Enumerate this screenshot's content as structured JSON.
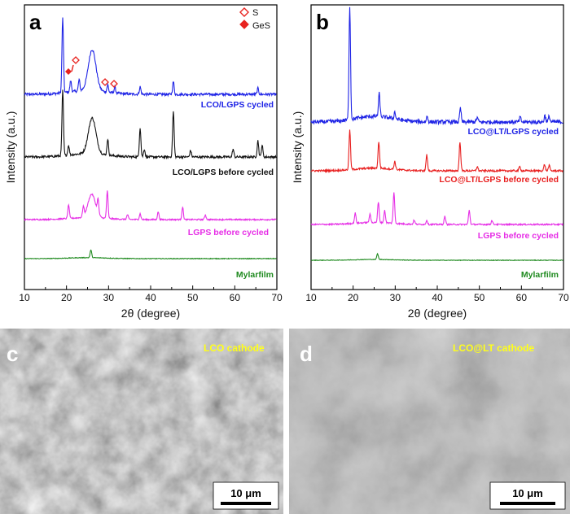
{
  "chart_data": [
    {
      "panel": "a",
      "type": "line",
      "xlabel": "2θ (degree)",
      "ylabel": "Intensity (a.u.)",
      "xlim": [
        10,
        70
      ],
      "xticks": [
        10,
        20,
        30,
        40,
        50,
        60,
        70
      ],
      "legend": [
        {
          "label": "S",
          "marker": "open-diamond",
          "color": "#e8231f"
        },
        {
          "label": "GeS",
          "marker": "filled-diamond",
          "color": "#e8231f"
        }
      ],
      "series": [
        {
          "name": "LCO/LGPS cycled",
          "color": "#1f24e6",
          "peaks": [
            [
              19.1,
              1.0
            ],
            [
              21.0,
              0.15
            ],
            [
              23.0,
              0.15
            ],
            [
              26.1,
              0.55
            ],
            [
              29.8,
              0.1
            ],
            [
              31.5,
              0.08
            ],
            [
              37.5,
              0.1
            ],
            [
              45.4,
              0.17
            ],
            [
              65.5,
              0.08
            ]
          ]
        },
        {
          "name": "LCO/LGPS before cycled",
          "color": "#111111",
          "peaks": [
            [
              19.1,
              1.0
            ],
            [
              20.5,
              0.15
            ],
            [
              26.1,
              0.55
            ],
            [
              29.8,
              0.25
            ],
            [
              37.5,
              0.45
            ],
            [
              38.5,
              0.12
            ],
            [
              45.4,
              0.7
            ],
            [
              49.5,
              0.1
            ],
            [
              59.6,
              0.12
            ],
            [
              65.5,
              0.25
            ],
            [
              66.5,
              0.18
            ]
          ]
        },
        {
          "name": "LGPS before cycled",
          "color": "#e62ee6",
          "peaks": [
            [
              20.5,
              0.35
            ],
            [
              24.0,
              0.25
            ],
            [
              26.0,
              0.6
            ],
            [
              27.5,
              0.35
            ],
            [
              29.7,
              0.7
            ],
            [
              34.5,
              0.12
            ],
            [
              37.5,
              0.15
            ],
            [
              41.8,
              0.2
            ],
            [
              47.6,
              0.32
            ],
            [
              53.0,
              0.12
            ]
          ]
        },
        {
          "name": "Mylarfilm",
          "color": "#1f8a1f",
          "peaks": [
            [
              25.8,
              0.4
            ]
          ]
        }
      ]
    },
    {
      "panel": "b",
      "type": "line",
      "xlabel": "2θ (degree)",
      "ylabel": "Intensity (a.u.)",
      "xlim": [
        10,
        70
      ],
      "xticks": [
        10,
        20,
        30,
        40,
        50,
        60,
        70
      ],
      "series": [
        {
          "name": "LCO@LT/LGPS cycled",
          "color": "#1f24e6",
          "peaks": [
            [
              19.2,
              1.0
            ],
            [
              26.2,
              0.2
            ],
            [
              29.9,
              0.06
            ],
            [
              37.6,
              0.05
            ],
            [
              45.5,
              0.12
            ],
            [
              49.5,
              0.04
            ],
            [
              59.7,
              0.04
            ],
            [
              65.6,
              0.06
            ],
            [
              66.6,
              0.05
            ]
          ]
        },
        {
          "name": "LCO@LT/LGPS before cycled",
          "color": "#e81f1f",
          "peaks": [
            [
              19.2,
              0.75
            ],
            [
              26.1,
              0.5
            ],
            [
              29.9,
              0.15
            ],
            [
              37.5,
              0.3
            ],
            [
              45.4,
              0.55
            ],
            [
              49.5,
              0.08
            ],
            [
              59.6,
              0.08
            ],
            [
              65.5,
              0.12
            ],
            [
              66.6,
              0.1
            ]
          ]
        },
        {
          "name": "LGPS before cycled",
          "color": "#e62ee6",
          "peaks": [
            [
              20.5,
              0.25
            ],
            [
              24.0,
              0.2
            ],
            [
              26.0,
              0.5
            ],
            [
              27.5,
              0.3
            ],
            [
              29.7,
              0.75
            ],
            [
              34.5,
              0.1
            ],
            [
              37.5,
              0.1
            ],
            [
              41.8,
              0.2
            ],
            [
              47.6,
              0.35
            ],
            [
              53.0,
              0.1
            ]
          ]
        },
        {
          "name": "Mylarfilm",
          "color": "#1f8a1f",
          "peaks": [
            [
              25.8,
              0.35
            ]
          ]
        }
      ]
    }
  ],
  "panels": {
    "a": {
      "letter": "a"
    },
    "b": {
      "letter": "b"
    },
    "c": {
      "letter": "c",
      "label": "LCO cathode",
      "scale_bar": "10 μm"
    },
    "d": {
      "letter": "d",
      "label": "LCO@LT cathode",
      "scale_bar": "10 μm"
    }
  }
}
